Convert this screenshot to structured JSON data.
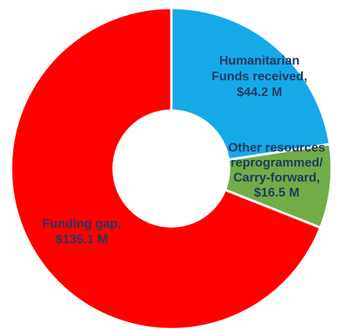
{
  "chart_data": {
    "type": "pie",
    "donut": true,
    "start_angle_deg": 0,
    "direction": "clockwise",
    "slices": [
      {
        "name": "Humanitarian Funds received",
        "value": 44.2,
        "label_lines": [
          "Humanitarian",
          "Funds received,",
          "$44.2 M"
        ],
        "color": "#16a9e8"
      },
      {
        "name": "Other resources reprogrammed/ Carry-forward",
        "value": 16.5,
        "label_lines": [
          "Other resources",
          "reprogrammed/",
          "Carry-forward,",
          "$16.5 M"
        ],
        "color": "#70ad47"
      },
      {
        "name": "Funding gap",
        "value": 135.1,
        "label_lines": [
          "Funding gap,",
          "$135.1 M"
        ],
        "color": "#ff0000"
      }
    ],
    "slice_border_color": "#ffffff",
    "label_color": "#1f3a5f"
  }
}
